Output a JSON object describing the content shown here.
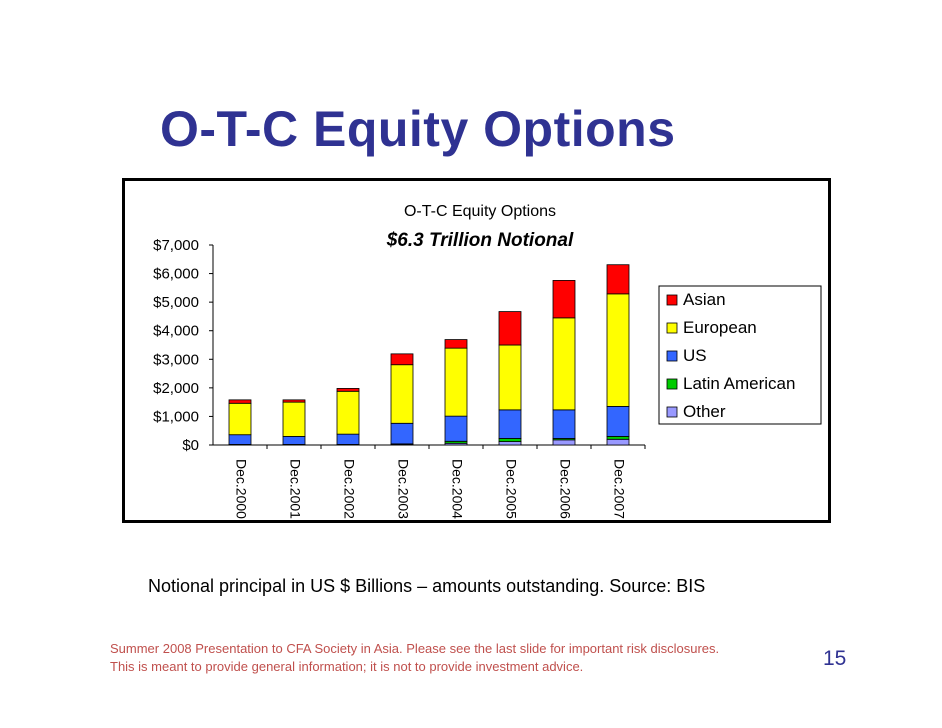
{
  "slide": {
    "title": "O-T-C Equity Options",
    "note": "Notional principal in US $ Billions – amounts outstanding. Source: BIS",
    "disclaimer_line1": "Summer 2008 Presentation to CFA Society in Asia.  Please see the last slide for important risk disclosures.",
    "disclaimer_line2": "This is meant to provide general information; it is not to provide investment advice.",
    "page_number": "15",
    "title_color": "#2f3292",
    "disclaimer_color": "#c0504d"
  },
  "chart_data": {
    "type": "bar",
    "stacked": true,
    "title": "O-T-C Equity Options",
    "subtitle": "$6.3 Trillion Notional",
    "xlabel": "",
    "ylabel": "",
    "ylim": [
      0,
      7000
    ],
    "yticks": [
      0,
      1000,
      2000,
      3000,
      4000,
      5000,
      6000,
      7000
    ],
    "ytick_labels": [
      "$0",
      "$1,000",
      "$2,000",
      "$3,000",
      "$4,000",
      "$5,000",
      "$6,000",
      "$7,000"
    ],
    "grid": false,
    "legend_position": "right",
    "categories": [
      "Dec.2000",
      "Dec.2001",
      "Dec.2002",
      "Dec.2003",
      "Dec.2004",
      "Dec.2005",
      "Dec.2006",
      "Dec.2007"
    ],
    "series": [
      {
        "name": "Other",
        "color": "#9999ff",
        "values": [
          10,
          10,
          10,
          20,
          60,
          120,
          180,
          200
        ]
      },
      {
        "name": "Latin American",
        "color": "#00cc00",
        "values": [
          10,
          10,
          10,
          20,
          70,
          110,
          50,
          100
        ]
      },
      {
        "name": "US",
        "color": "#3366ff",
        "values": [
          340,
          280,
          360,
          720,
          880,
          1000,
          1000,
          1050
        ]
      },
      {
        "name": "European",
        "color": "#ffff00",
        "values": [
          1100,
          1200,
          1500,
          2050,
          2380,
          2270,
          3220,
          3940
        ]
      },
      {
        "name": "Asian",
        "color": "#ff0000",
        "values": [
          120,
          80,
          100,
          380,
          300,
          1170,
          1310,
          1020
        ]
      }
    ],
    "legend_order": [
      "Asian",
      "European",
      "US",
      "Latin American",
      "Other"
    ]
  }
}
